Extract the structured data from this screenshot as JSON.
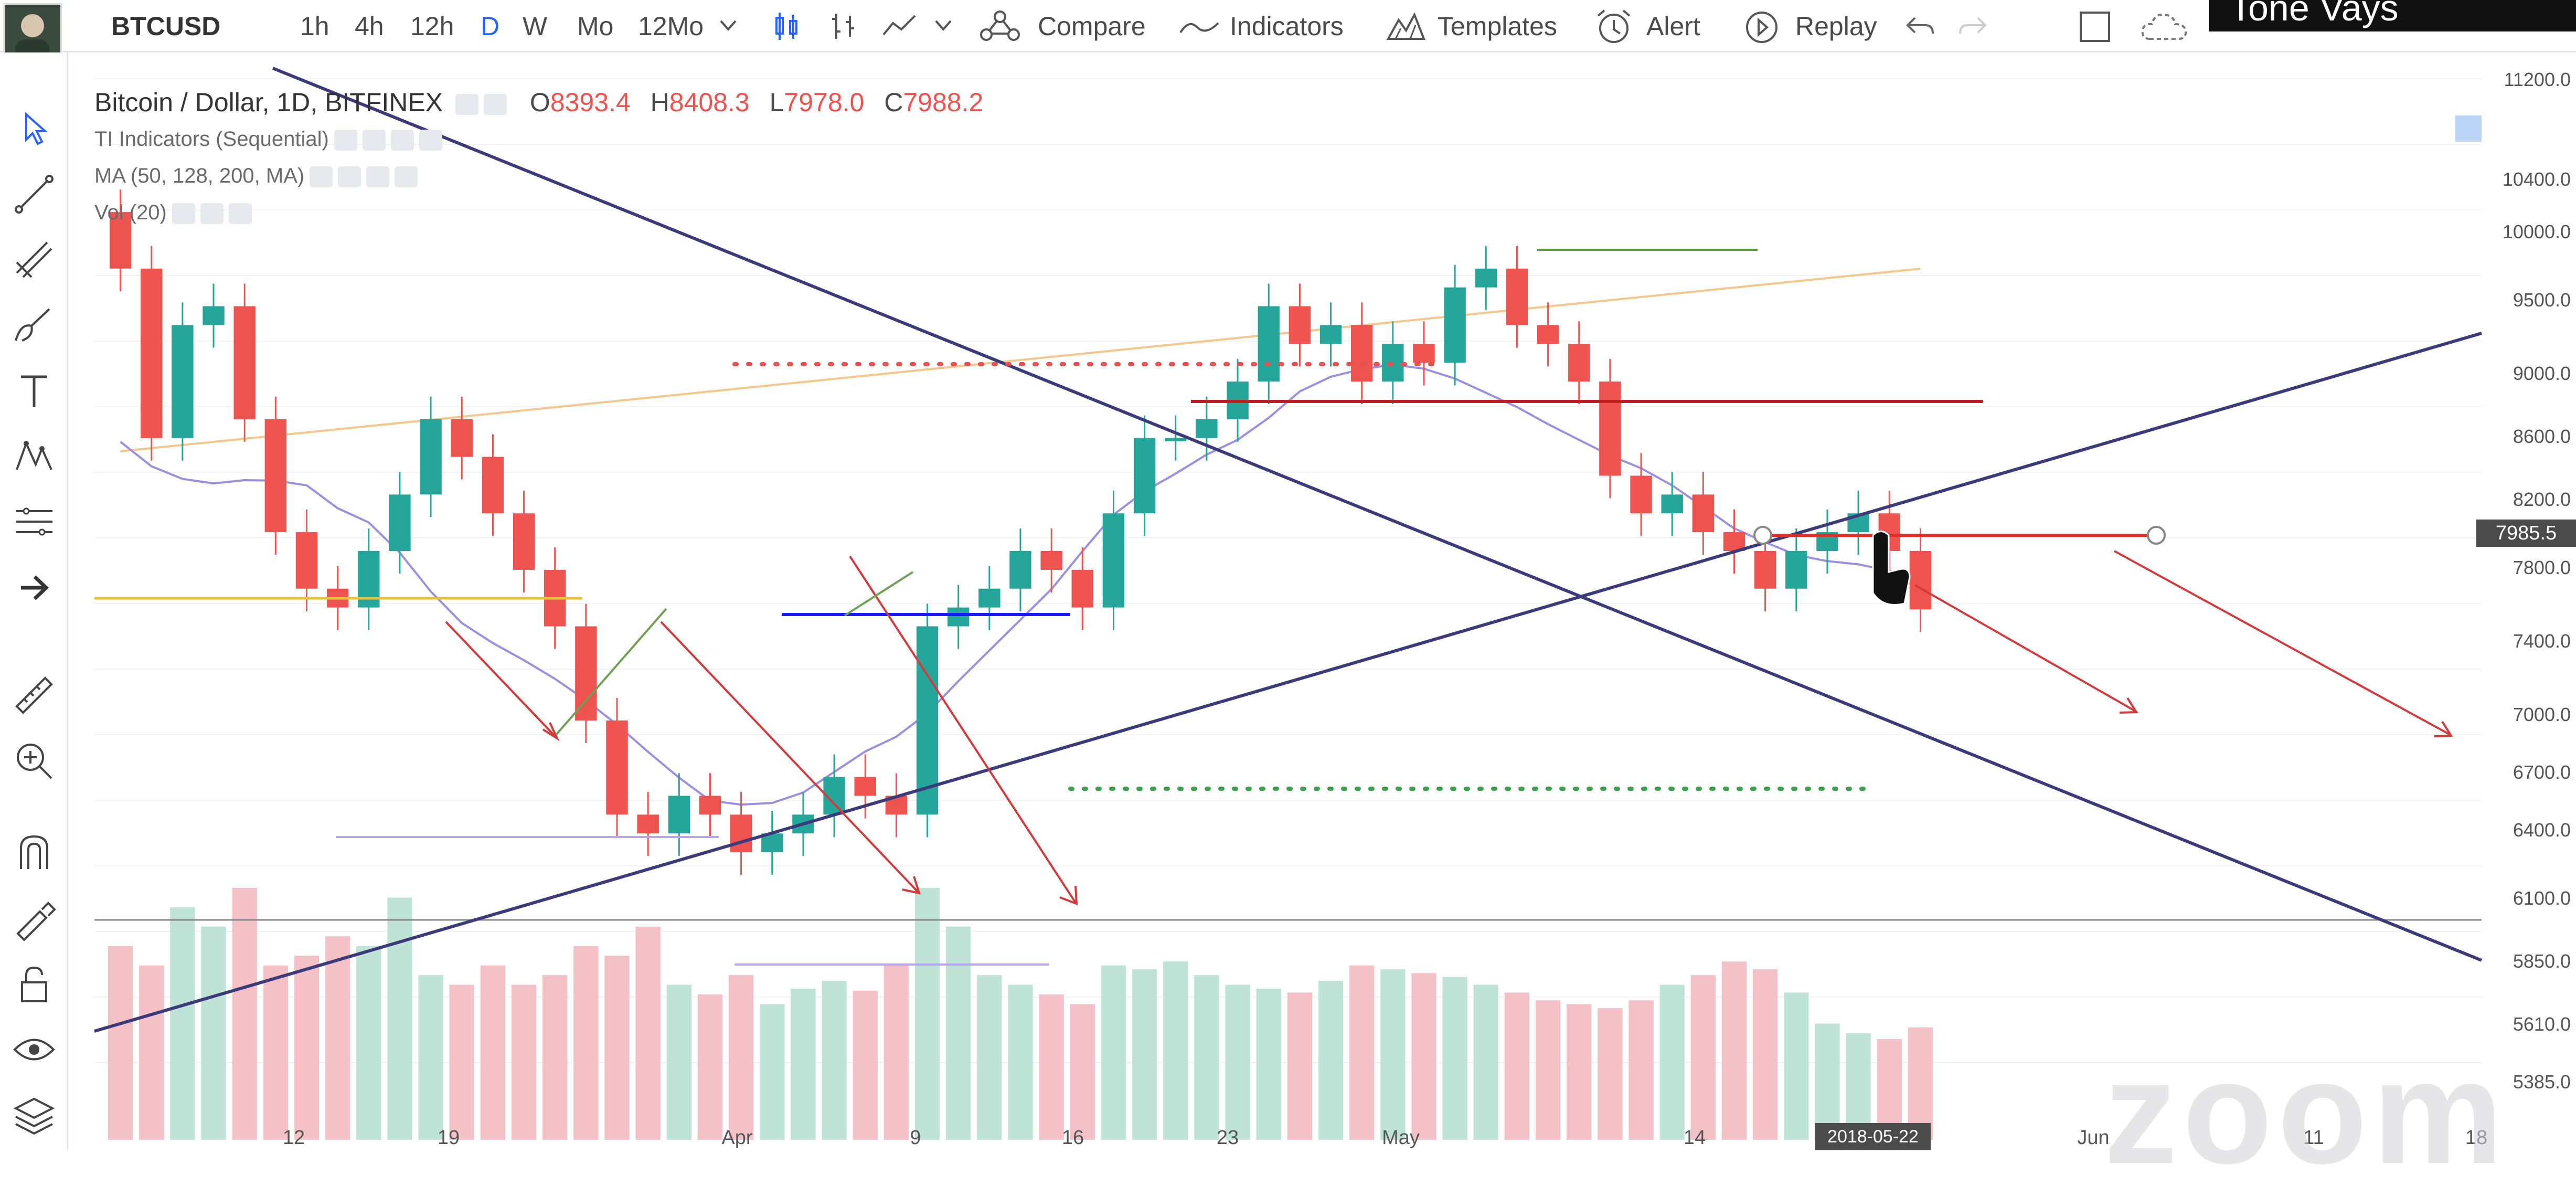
{
  "header": {
    "symbol": "BTCUSD",
    "intervals": [
      {
        "label": "1h",
        "active": false
      },
      {
        "label": "4h",
        "active": false
      },
      {
        "label": "12h",
        "active": false
      },
      {
        "label": "D",
        "active": true
      },
      {
        "label": "W",
        "active": false
      },
      {
        "label": "Mo",
        "active": false
      },
      {
        "label": "12Mo",
        "active": false
      }
    ],
    "compare_label": "Compare",
    "indicators_label": "Indicators",
    "templates_label": "Templates",
    "alert_label": "Alert",
    "replay_label": "Replay",
    "presenter_name": "Tone Vays"
  },
  "legend": {
    "title": "Bitcoin / Dollar, 1D, BITFINEX",
    "open_label": "O",
    "open": "8393.4",
    "high_label": "H",
    "high": "8408.3",
    "low_label": "L",
    "low": "7978.0",
    "close_label": "C",
    "close": "7988.2",
    "indicators": [
      "TI Indicators (Sequential)",
      "MA (50, 128, 200, MA)",
      "Vol (20)"
    ]
  },
  "price_axis": [
    "11200.0",
    "10400.0",
    "10000.0",
    "9500.0",
    "9000.0",
    "8600.0",
    "8200.0",
    "7800.0",
    "7400.0",
    "7000.0",
    "6700.0",
    "6400.0",
    "6100.0",
    "5850.0",
    "5610.0",
    "5385.0"
  ],
  "current_price": "7985.5",
  "time_axis": [
    "12",
    "19",
    "Apr",
    "9",
    "16",
    "23",
    "May",
    "14",
    "Jun",
    "11",
    "18"
  ],
  "time_marker": "2018-05-22",
  "watermark": "zoom",
  "colors": {
    "up": "#26a69a",
    "down": "#ef5350",
    "ma50": "#8e7cc3",
    "ma200": "#f5b971"
  },
  "chart_data": {
    "type": "candlestick",
    "symbol": "BTCUSD",
    "exchange": "BITFINEX",
    "interval": "1D",
    "ylim": [
      5300,
      11300
    ],
    "last_bar": {
      "open": 8393.4,
      "high": 8408.3,
      "low": 7978.0,
      "close": 7988.2
    },
    "closes": [
      9800,
      8900,
      9500,
      9600,
      9000,
      8400,
      8100,
      8000,
      8300,
      8600,
      9000,
      8800,
      8500,
      8200,
      7900,
      7400,
      6900,
      6800,
      7000,
      6900,
      6700,
      6800,
      6900,
      7100,
      7000,
      6900,
      7900,
      8000,
      8100,
      8300,
      8200,
      8000,
      8500,
      8900,
      8900,
      9000,
      9200,
      9600,
      9400,
      9500,
      9200,
      9400,
      9300,
      9700,
      9800,
      9500,
      9400,
      9200,
      8700,
      8500,
      8600,
      8400,
      8300,
      8100,
      8300,
      8400,
      8500,
      8300,
      7990
    ],
    "volumes": [
      100,
      90,
      120,
      110,
      130,
      90,
      95,
      105,
      100,
      125,
      85,
      80,
      90,
      80,
      85,
      100,
      95,
      110,
      80,
      75,
      85,
      70,
      78,
      82,
      77,
      90,
      130,
      110,
      85,
      80,
      75,
      70,
      90,
      88,
      92,
      85,
      80,
      78,
      76,
      82,
      90,
      88,
      86,
      84,
      80,
      76,
      72,
      70,
      68,
      72,
      80,
      85,
      92,
      88,
      76,
      60,
      55,
      52,
      58
    ]
  }
}
